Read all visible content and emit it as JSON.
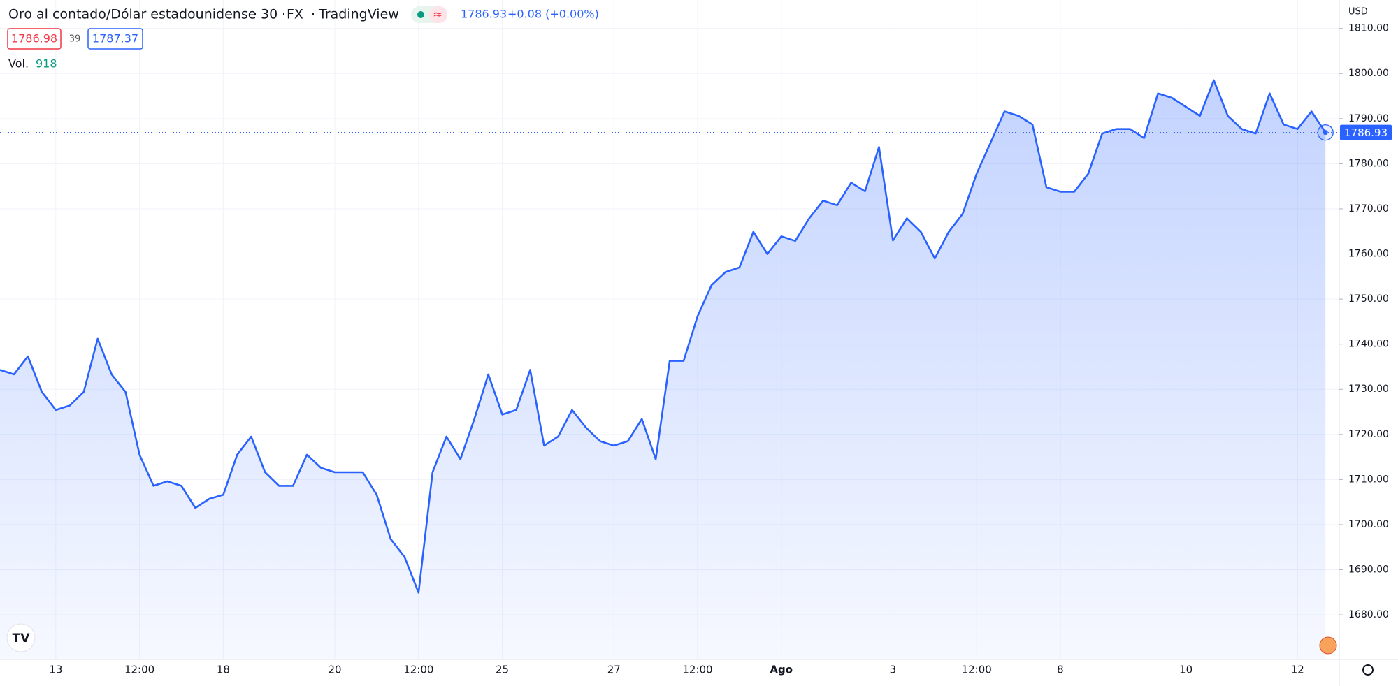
{
  "header": {
    "symbol": "Oro al contado/Dólar estadounidense",
    "interval": "30",
    "exchange": "FX",
    "source": "TradingView",
    "price": "1786.93",
    "change": "+0.08 (+0.00%)",
    "bid": "1786.98",
    "spread": "39",
    "ask": "1787.37",
    "volume_label": "Vol.",
    "volume": "918",
    "currency": "USD"
  },
  "chart_data": {
    "type": "area",
    "color": "#2962ff",
    "grid": true,
    "categories": [
      null,
      null,
      null,
      null,
      "13",
      null,
      null,
      null,
      null,
      null,
      "12:00",
      null,
      null,
      null,
      null,
      null,
      "18",
      null,
      null,
      null,
      null,
      null,
      null,
      null,
      "20",
      null,
      null,
      null,
      null,
      null,
      "12:00",
      null,
      null,
      null,
      null,
      null,
      "25",
      null,
      null,
      null,
      null,
      null,
      null,
      null,
      "27",
      null,
      null,
      null,
      null,
      null,
      "12:00",
      null,
      null,
      null,
      null,
      null,
      "Ago",
      null,
      null,
      null,
      null,
      null,
      null,
      null,
      "3",
      null,
      null,
      null,
      null,
      null,
      "12:00",
      null,
      null,
      null,
      null,
      null,
      "8",
      null,
      null,
      null,
      null,
      null,
      null,
      null,
      null,
      "10",
      null,
      null,
      null,
      null,
      null,
      null,
      null,
      "12",
      null,
      null
    ],
    "values": [
      1734.3,
      1733.3,
      1737.3,
      1729.4,
      1725.4,
      1726.4,
      1729.4,
      1741.2,
      1733.3,
      1729.4,
      1715.5,
      1708.6,
      1709.6,
      1708.6,
      1703.7,
      1705.7,
      1706.6,
      1715.5,
      1719.5,
      1711.6,
      1708.6,
      1708.6,
      1715.5,
      1712.6,
      1711.6,
      1711.6,
      1711.6,
      1706.6,
      1696.8,
      1692.8,
      1684.9,
      1711.6,
      1719.5,
      1714.5,
      1723.4,
      1733.3,
      1724.4,
      1725.4,
      1734.3,
      1717.5,
      1719.5,
      1725.4,
      1721.5,
      1718.5,
      1717.5,
      1718.5,
      1723.4,
      1714.5,
      1736.3,
      1736.3,
      1746.2,
      1753.1,
      1756.0,
      1757.0,
      1764.9,
      1760.0,
      1763.9,
      1762.9,
      1767.9,
      1771.8,
      1770.8,
      1775.8,
      1773.9,
      1783.7,
      1763.0,
      1767.9,
      1764.9,
      1759.0,
      1764.9,
      1768.9,
      1777.8,
      1784.7,
      1791.6,
      1790.6,
      1788.7,
      1774.8,
      1773.8,
      1773.8,
      1777.8,
      1786.7,
      1787.7,
      1787.7,
      1785.7,
      1795.6,
      1794.6,
      1792.6,
      1790.6,
      1798.5,
      1790.6,
      1787.7,
      1786.7,
      1795.6,
      1788.7,
      1787.7,
      1791.6,
      1786.93
    ],
    "ylim": [
      1670.1,
      1816.3
    ],
    "yticks": [
      {
        "value": 1680,
        "label": "1680.00"
      },
      {
        "value": 1690,
        "label": "1690.00"
      },
      {
        "value": 1700,
        "label": "1700.00"
      },
      {
        "value": 1710,
        "label": "1710.00"
      },
      {
        "value": 1720,
        "label": "1720.00"
      },
      {
        "value": 1730,
        "label": "1730.00"
      },
      {
        "value": 1740,
        "label": "1740.00"
      },
      {
        "value": 1750,
        "label": "1750.00"
      },
      {
        "value": 1760,
        "label": "1760.00"
      },
      {
        "value": 1770,
        "label": "1770.00"
      },
      {
        "value": 1780,
        "label": "1780.00"
      },
      {
        "value": 1790,
        "label": "1790.00"
      },
      {
        "value": 1800,
        "label": "1800.00"
      },
      {
        "value": 1810,
        "label": "1810.00"
      }
    ]
  }
}
